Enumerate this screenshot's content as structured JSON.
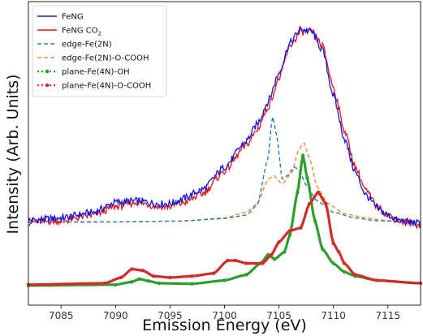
{
  "chart_data": {
    "type": "line",
    "xlabel": "Emission Energy (eV)",
    "ylabel": "Intensity (Arb. Units)",
    "xlim": [
      7082,
      7118
    ],
    "ylim": [
      0,
      1.0
    ],
    "xticks": [
      7085,
      7090,
      7095,
      7100,
      7105,
      7110,
      7115
    ],
    "yticks_shown": false,
    "grid": false,
    "legend_position": "top-left",
    "series": [
      {
        "name": "FeNG",
        "label_main": "FeNG",
        "label_sub": "",
        "color": "#1515e0",
        "style": "solid-noisy",
        "points": [
          [
            7082,
            0.281
          ],
          [
            7085,
            0.29
          ],
          [
            7088,
            0.31
          ],
          [
            7090,
            0.345
          ],
          [
            7092,
            0.35
          ],
          [
            7094,
            0.34
          ],
          [
            7095,
            0.34
          ],
          [
            7096,
            0.355
          ],
          [
            7098,
            0.39
          ],
          [
            7100,
            0.47
          ],
          [
            7102,
            0.56
          ],
          [
            7103,
            0.62
          ],
          [
            7104,
            0.7
          ],
          [
            7105,
            0.8
          ],
          [
            7106,
            0.905
          ],
          [
            7107,
            0.955
          ],
          [
            7108,
            0.945
          ],
          [
            7109,
            0.88
          ],
          [
            7110,
            0.72
          ],
          [
            7111,
            0.57
          ],
          [
            7112,
            0.45
          ],
          [
            7113,
            0.37
          ],
          [
            7114,
            0.325
          ],
          [
            7115,
            0.3
          ],
          [
            7116,
            0.28
          ],
          [
            7118,
            0.27
          ]
        ]
      },
      {
        "name": "FeNG CO2",
        "label_main": "FeNG CO",
        "label_sub": "2",
        "color": "#e01515",
        "style": "solid-noisy",
        "points": [
          [
            7082,
            0.275
          ],
          [
            7085,
            0.28
          ],
          [
            7088,
            0.3
          ],
          [
            7090,
            0.33
          ],
          [
            7092,
            0.345
          ],
          [
            7094,
            0.33
          ],
          [
            7095,
            0.33
          ],
          [
            7096,
            0.34
          ],
          [
            7098,
            0.375
          ],
          [
            7100,
            0.455
          ],
          [
            7102,
            0.545
          ],
          [
            7103,
            0.6
          ],
          [
            7104,
            0.68
          ],
          [
            7105,
            0.78
          ],
          [
            7106,
            0.895
          ],
          [
            7107,
            0.945
          ],
          [
            7108,
            0.945
          ],
          [
            7109,
            0.895
          ],
          [
            7110,
            0.75
          ],
          [
            7111,
            0.6
          ],
          [
            7112,
            0.47
          ],
          [
            7113,
            0.385
          ],
          [
            7114,
            0.33
          ],
          [
            7115,
            0.3
          ],
          [
            7116,
            0.28
          ],
          [
            7118,
            0.265
          ]
        ]
      },
      {
        "name": "edge-Fe(2N)",
        "label_main": "edge-Fe(2N)",
        "label_sub": "",
        "color": "#2b7bba",
        "style": "dashed",
        "points": [
          [
            7082,
            0.275
          ],
          [
            7090,
            0.276
          ],
          [
            7096,
            0.279
          ],
          [
            7100,
            0.288
          ],
          [
            7102,
            0.3
          ],
          [
            7103,
            0.335
          ],
          [
            7104,
            0.5
          ],
          [
            7104.4,
            0.65
          ],
          [
            7104.8,
            0.58
          ],
          [
            7105.3,
            0.425
          ],
          [
            7105.8,
            0.44
          ],
          [
            7106.4,
            0.47
          ],
          [
            7106.9,
            0.455
          ],
          [
            7107.5,
            0.405
          ],
          [
            7108.5,
            0.35
          ],
          [
            7110,
            0.31
          ],
          [
            7112,
            0.29
          ],
          [
            7114,
            0.28
          ],
          [
            7118,
            0.276
          ]
        ]
      },
      {
        "name": "edge-Fe(2N)-O-COOH",
        "label_main": "edge-Fe(2N)-O-COOH",
        "label_sub": "",
        "color": "#f08a24",
        "style": "dashed",
        "points": [
          [
            7082,
            0.275
          ],
          [
            7090,
            0.276
          ],
          [
            7096,
            0.279
          ],
          [
            7100,
            0.29
          ],
          [
            7102,
            0.31
          ],
          [
            7103,
            0.34
          ],
          [
            7104,
            0.425
          ],
          [
            7104.5,
            0.44
          ],
          [
            7105.3,
            0.41
          ],
          [
            7106.2,
            0.45
          ],
          [
            7106.8,
            0.53
          ],
          [
            7107.3,
            0.555
          ],
          [
            7107.8,
            0.5
          ],
          [
            7108.5,
            0.4
          ],
          [
            7109.5,
            0.34
          ],
          [
            7111,
            0.305
          ],
          [
            7113,
            0.29
          ],
          [
            7115,
            0.28
          ],
          [
            7118,
            0.276
          ]
        ]
      },
      {
        "name": "plane-Fe(4N)-OH",
        "label_main": "plane-Fe(4N)-OH",
        "label_sub": "",
        "color": "#2ca02c",
        "style": "dotted",
        "points": [
          [
            7082,
            0.052
          ],
          [
            7090,
            0.055
          ],
          [
            7091.5,
            0.065
          ],
          [
            7092.2,
            0.075
          ],
          [
            7093,
            0.068
          ],
          [
            7094,
            0.06
          ],
          [
            7097,
            0.058
          ],
          [
            7100,
            0.07
          ],
          [
            7102,
            0.09
          ],
          [
            7103.3,
            0.13
          ],
          [
            7104,
            0.16
          ],
          [
            7104.6,
            0.145
          ],
          [
            7105.5,
            0.17
          ],
          [
            7106,
            0.23
          ],
          [
            7106.7,
            0.38
          ],
          [
            7107.2,
            0.51
          ],
          [
            7107.6,
            0.43
          ],
          [
            7108.3,
            0.28
          ],
          [
            7109,
            0.18
          ],
          [
            7110,
            0.13
          ],
          [
            7111,
            0.1
          ],
          [
            7112,
            0.085
          ],
          [
            7114,
            0.07
          ],
          [
            7118,
            0.06
          ]
        ]
      },
      {
        "name": "plane-Fe(4N)-O-COOH",
        "label_main": "plane-Fe(4N)-O-COOH",
        "label_sub": "",
        "color": "#d42a2a",
        "style": "dotted",
        "points": [
          [
            7082,
            0.055
          ],
          [
            7089,
            0.06
          ],
          [
            7090.5,
            0.08
          ],
          [
            7091.5,
            0.11
          ],
          [
            7092.5,
            0.105
          ],
          [
            7093.5,
            0.085
          ],
          [
            7095,
            0.08
          ],
          [
            7097,
            0.085
          ],
          [
            7099,
            0.095
          ],
          [
            7100.3,
            0.14
          ],
          [
            7101,
            0.14
          ],
          [
            7102,
            0.13
          ],
          [
            7103.5,
            0.13
          ],
          [
            7104.3,
            0.16
          ],
          [
            7105,
            0.205
          ],
          [
            7106,
            0.245
          ],
          [
            7107,
            0.255
          ],
          [
            7107.8,
            0.34
          ],
          [
            7108.6,
            0.38
          ],
          [
            7109.3,
            0.34
          ],
          [
            7110,
            0.2
          ],
          [
            7110.5,
            0.17
          ],
          [
            7111,
            0.13
          ],
          [
            7112,
            0.09
          ],
          [
            7114,
            0.07
          ],
          [
            7118,
            0.06
          ]
        ]
      }
    ]
  }
}
